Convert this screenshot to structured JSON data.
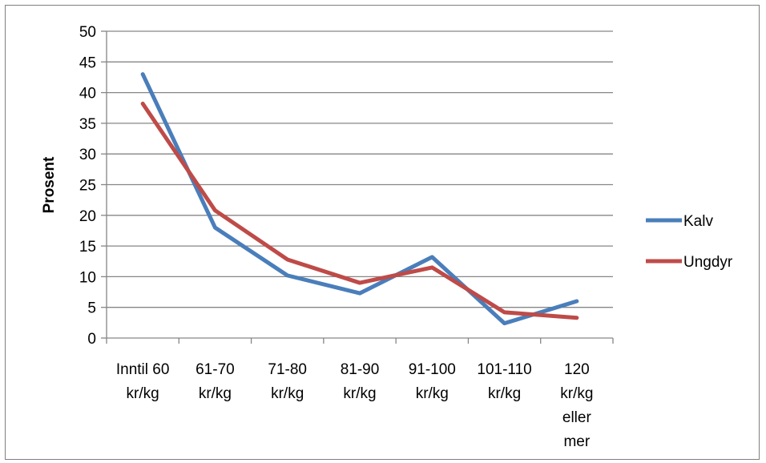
{
  "chart_data": {
    "type": "line",
    "title": "",
    "xlabel": "",
    "ylabel": "Prosent",
    "ylim": [
      0,
      50
    ],
    "ytick_step": 5,
    "yticks": [
      "0",
      "5",
      "10",
      "15",
      "20",
      "25",
      "30",
      "35",
      "40",
      "45",
      "50"
    ],
    "grid": true,
    "legend_position": "right",
    "categories": [
      "Inntil 60 kr/kg",
      "61-70 kr/kg",
      "71-80 kr/kg",
      "81-90 kr/kg",
      "91-100 kr/kg",
      "101-110 kr/kg",
      "120 kr/kg eller mer"
    ],
    "category_label_lines": [
      [
        "Inntil 60",
        "kr/kg"
      ],
      [
        "61-70",
        "kr/kg"
      ],
      [
        "71-80",
        "kr/kg"
      ],
      [
        "81-90",
        "kr/kg"
      ],
      [
        "91-100",
        "kr/kg"
      ],
      [
        "101-110",
        "kr/kg"
      ],
      [
        "120",
        "kr/kg",
        "eller",
        "mer"
      ]
    ],
    "series": [
      {
        "name": "Kalv",
        "color": "#4a7ebb",
        "values": [
          43.0,
          18.0,
          10.2,
          7.3,
          13.2,
          2.4,
          6.0
        ]
      },
      {
        "name": "Ungdyr",
        "color": "#be4b48",
        "values": [
          38.2,
          20.8,
          12.8,
          9.0,
          11.5,
          4.2,
          3.3
        ]
      }
    ]
  }
}
